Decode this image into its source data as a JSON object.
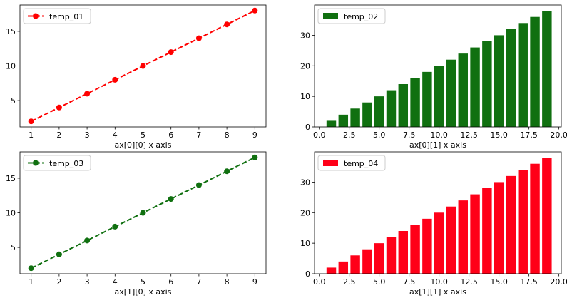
{
  "chart_data": [
    {
      "type": "line",
      "panel": "top-left",
      "series": [
        {
          "name": "temp_01",
          "x": [
            1,
            2,
            3,
            4,
            5,
            6,
            7,
            8,
            9
          ],
          "values": [
            2,
            4,
            6,
            8,
            10,
            12,
            14,
            16,
            18
          ],
          "color": "#ff0000",
          "linestyle": "dashed",
          "marker": "circle"
        }
      ],
      "xlabel": "ax[0][0] x axis",
      "ylabel": "",
      "xlim": [
        0.6,
        9.4
      ],
      "ylim": [
        1.2,
        18.8
      ],
      "xticks": [
        1,
        2,
        3,
        4,
        5,
        6,
        7,
        8,
        9
      ],
      "xtick_labels": [
        "1",
        "2",
        "3",
        "4",
        "5",
        "6",
        "7",
        "8",
        "9"
      ],
      "yticks": [
        5,
        10,
        15
      ],
      "ytick_labels": [
        "5",
        "10",
        "15"
      ],
      "grid": false,
      "legend": "upper-left"
    },
    {
      "type": "bar",
      "panel": "top-right",
      "series": [
        {
          "name": "temp_02",
          "x": [
            1,
            2,
            3,
            4,
            5,
            6,
            7,
            8,
            9,
            10,
            11,
            12,
            13,
            14,
            15,
            16,
            17,
            18,
            19
          ],
          "values": [
            2,
            4,
            6,
            8,
            10,
            12,
            14,
            16,
            18,
            20,
            22,
            24,
            26,
            28,
            30,
            32,
            34,
            36,
            38
          ],
          "color": "#107010"
        }
      ],
      "bar_width": 0.8,
      "xlabel": "ax[0][1] x axis",
      "ylabel": "",
      "xlim": [
        -0.4,
        20.2
      ],
      "ylim": [
        0,
        39.9
      ],
      "xticks": [
        0,
        2.5,
        5,
        7.5,
        10,
        12.5,
        15,
        17.5,
        20
      ],
      "xtick_labels": [
        "0.0",
        "2.5",
        "5.0",
        "7.5",
        "10.0",
        "12.5",
        "15.0",
        "17.5",
        "20.0"
      ],
      "yticks": [
        0,
        10,
        20,
        30
      ],
      "ytick_labels": [
        "0",
        "10",
        "20",
        "30"
      ],
      "grid": false,
      "legend": "upper-left"
    },
    {
      "type": "line",
      "panel": "bottom-left",
      "series": [
        {
          "name": "temp_03",
          "x": [
            1,
            2,
            3,
            4,
            5,
            6,
            7,
            8,
            9
          ],
          "values": [
            2,
            4,
            6,
            8,
            10,
            12,
            14,
            16,
            18
          ],
          "color": "#107010",
          "linestyle": "dashed",
          "marker": "circle"
        }
      ],
      "xlabel": "ax[1][0] x axis",
      "ylabel": "",
      "xlim": [
        0.6,
        9.4
      ],
      "ylim": [
        1.2,
        18.8
      ],
      "xticks": [
        1,
        2,
        3,
        4,
        5,
        6,
        7,
        8,
        9
      ],
      "xtick_labels": [
        "1",
        "2",
        "3",
        "4",
        "5",
        "6",
        "7",
        "8",
        "9"
      ],
      "yticks": [
        5,
        10,
        15
      ],
      "ytick_labels": [
        "5",
        "10",
        "15"
      ],
      "grid": false,
      "legend": "upper-left"
    },
    {
      "type": "bar",
      "panel": "bottom-right",
      "series": [
        {
          "name": "temp_04",
          "x": [
            1,
            2,
            3,
            4,
            5,
            6,
            7,
            8,
            9,
            10,
            11,
            12,
            13,
            14,
            15,
            16,
            17,
            18,
            19
          ],
          "values": [
            2,
            4,
            6,
            8,
            10,
            12,
            14,
            16,
            18,
            20,
            22,
            24,
            26,
            28,
            30,
            32,
            34,
            36,
            38
          ],
          "color": "#ff0018"
        }
      ],
      "bar_width": 0.8,
      "xlabel": "ax[1][1] x axis",
      "ylabel": "",
      "xlim": [
        -0.4,
        20.2
      ],
      "ylim": [
        0,
        39.9
      ],
      "xticks": [
        0,
        2.5,
        5,
        7.5,
        10,
        12.5,
        15,
        17.5,
        20
      ],
      "xtick_labels": [
        "0.0",
        "2.5",
        "5.0",
        "7.5",
        "10.0",
        "12.5",
        "15.0",
        "17.5",
        "20.0"
      ],
      "yticks": [
        0,
        10,
        20,
        30
      ],
      "ytick_labels": [
        "0",
        "10",
        "20",
        "30"
      ],
      "grid": false,
      "legend": "upper-left"
    }
  ]
}
